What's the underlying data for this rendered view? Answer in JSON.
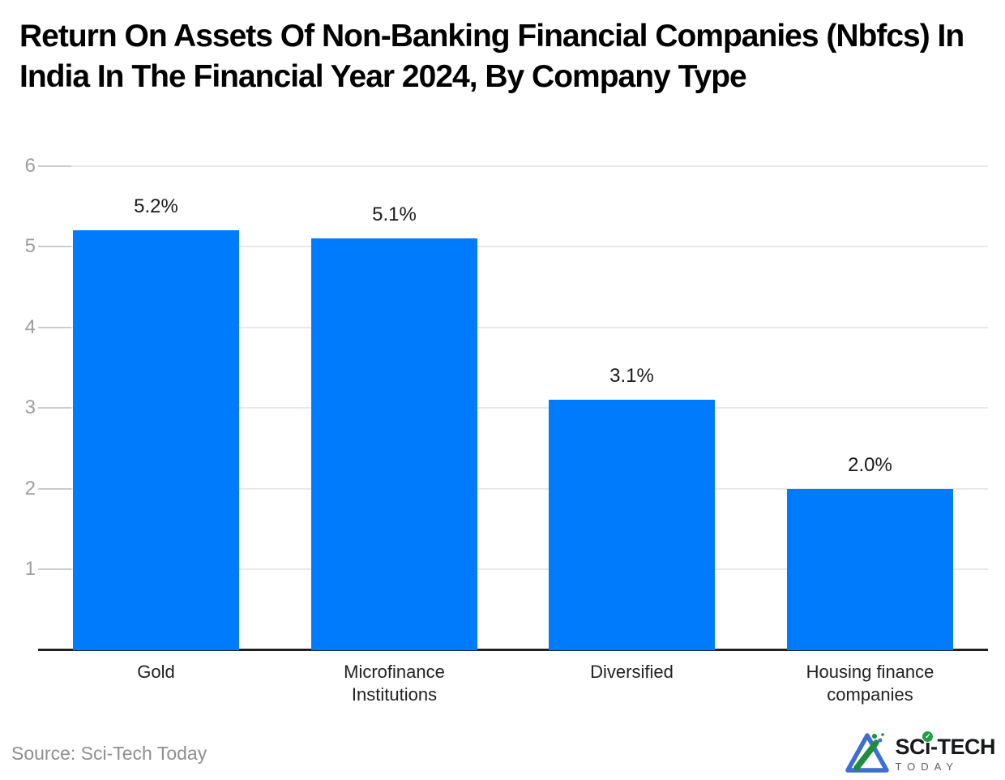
{
  "page": {
    "title": "Return On Assets Of Non-Banking Financial Companies (Nbfcs) In India In The Financial Year 2024, By Company Type",
    "source_note": "Source: Sci-Tech Today"
  },
  "branding": {
    "wordmark_pre": "SC",
    "wordmark_i": "i",
    "wordmark_post": "-TECH",
    "check_glyph": "✓",
    "tagline": "TODAY",
    "icon_name": "flask-triangle-icon",
    "colors": {
      "blue": "#3e6fd0",
      "green": "#208c3c",
      "text": "#17191c",
      "tagline_gray": "#5f5f5f"
    }
  },
  "chart_data": {
    "type": "bar",
    "title": "Return On Assets Of Non-Banking Financial Companies (Nbfcs) In India In The Financial Year 2024, By Company Type",
    "categories": [
      "Gold",
      "Microfinance Institutions",
      "Diversified",
      "Housing finance companies"
    ],
    "values": [
      5.2,
      5.1,
      3.1,
      2.0
    ],
    "value_labels": [
      "5.2%",
      "5.1%",
      "3.1%",
      "2.0%"
    ],
    "xlabel": "",
    "ylabel": "",
    "ylim": [
      0,
      6
    ],
    "yticks": [
      1,
      2,
      3,
      4,
      5,
      6
    ],
    "grid": true,
    "legend": false,
    "bar_color": "#007bfc",
    "gridline_color": "#e9e9e9",
    "tick_color": "#cccccc",
    "axis_line_color": "#212121",
    "y_label_color": "#9e9e9e",
    "category_label_color": "#212121",
    "value_label_color": "#1a1a1a"
  }
}
